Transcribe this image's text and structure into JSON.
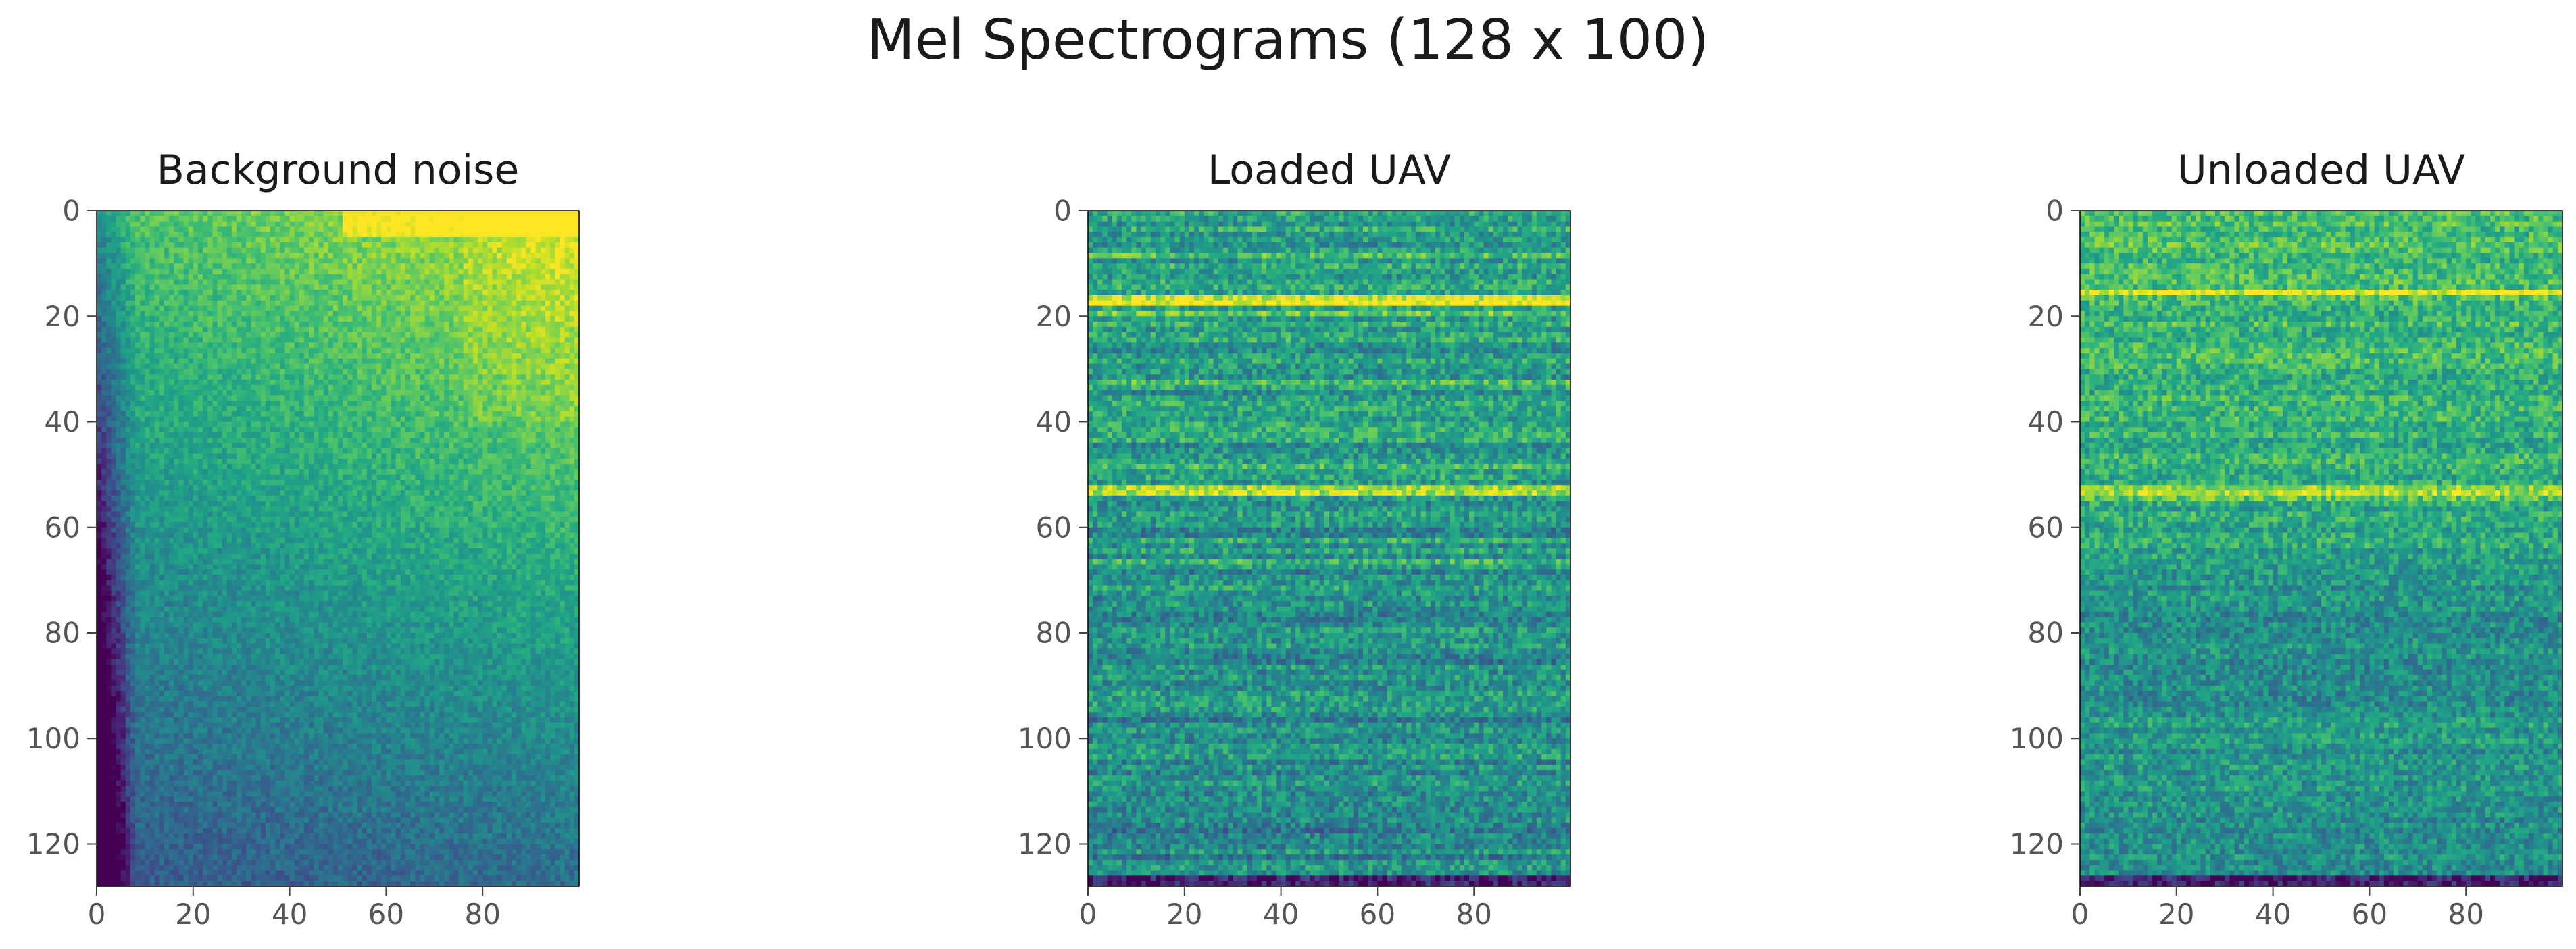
{
  "chart_data": {
    "title": "Mel Spectrograms (128 x 100)",
    "panels": [
      {
        "type": "heatmap",
        "title": "Background noise",
        "rows": 128,
        "cols": 100,
        "xlim": [
          0,
          100
        ],
        "ylim": [
          128,
          0
        ],
        "xticks": [
          0,
          20,
          40,
          60,
          80
        ],
        "yticks": [
          0,
          20,
          40,
          60,
          80,
          100,
          120
        ],
        "colormap": "viridis",
        "pattern": "brighter toward top-right, dark purple low-frequency band along left edge at the bottom"
      },
      {
        "type": "heatmap",
        "title": "Loaded UAV",
        "rows": 128,
        "cols": 100,
        "xlim": [
          0,
          100
        ],
        "ylim": [
          128,
          0
        ],
        "xticks": [
          0,
          20,
          40,
          60,
          80
        ],
        "yticks": [
          0,
          20,
          40,
          60,
          80,
          100,
          120
        ],
        "colormap": "viridis",
        "horizontal_bands": [
          8,
          17,
          23,
          32,
          53,
          62
        ],
        "pattern": "horizontal harmonic bands, strongest near rows 15-20 and 50-55, dark row at bottom"
      },
      {
        "type": "heatmap",
        "title": "Unloaded UAV",
        "rows": 128,
        "cols": 100,
        "xlim": [
          0,
          100
        ],
        "ylim": [
          128,
          0
        ],
        "xticks": [
          0,
          20,
          40,
          60,
          80
        ],
        "yticks": [
          0,
          20,
          40,
          60,
          80,
          100,
          120
        ],
        "colormap": "viridis",
        "horizontal_bands": [
          15,
          53
        ],
        "pattern": "bright textured top half, thin bright line near row 15, bright band near row 53, darker toward row 80, dark row at bottom"
      }
    ]
  }
}
